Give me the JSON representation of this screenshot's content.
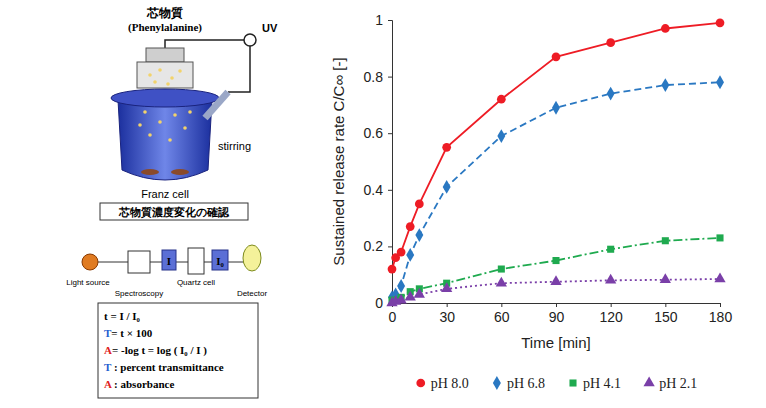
{
  "chart_data": {
    "type": "line",
    "x_label": "Time [min]",
    "y_label": "Sustained release rate C/C∞ [-]",
    "x": [
      0,
      2,
      5,
      10,
      15,
      30,
      60,
      90,
      120,
      150,
      180
    ],
    "xlim": [
      0,
      180
    ],
    "xticks": [
      0,
      30,
      60,
      90,
      120,
      150,
      180
    ],
    "ylim": [
      0,
      1
    ],
    "yticks": [
      0,
      0.2,
      0.4,
      0.6,
      0.8,
      1
    ],
    "grid": false,
    "legend": "bottom",
    "series": [
      {
        "name": "pH 8.0",
        "color": "#ee1c25",
        "marker": "circle",
        "line_style": "solid",
        "values": [
          0.12,
          0.16,
          0.18,
          0.27,
          0.35,
          0.55,
          0.72,
          0.87,
          0.92,
          0.97,
          0.99
        ]
      },
      {
        "name": "pH 6.8",
        "color": "#2a78c2",
        "marker": "diamond",
        "line_style": "dashed",
        "values": [
          0.02,
          0.03,
          0.06,
          0.17,
          0.24,
          0.41,
          0.59,
          0.69,
          0.74,
          0.77,
          0.78
        ]
      },
      {
        "name": "pH 4.1",
        "color": "#1faa4f",
        "marker": "square",
        "line_style": "dashdot",
        "values": [
          0.01,
          0.01,
          0.02,
          0.04,
          0.05,
          0.07,
          0.12,
          0.15,
          0.19,
          0.22,
          0.23
        ]
      },
      {
        "name": "pH 2.1",
        "color": "#7a3fa8",
        "marker": "triangle",
        "line_style": "dotted",
        "values": [
          0.0,
          0.005,
          0.01,
          0.02,
          0.03,
          0.05,
          0.07,
          0.075,
          0.08,
          0.082,
          0.085
        ]
      }
    ]
  },
  "diagram": {
    "core_title": "芯物質",
    "core_name": "(Phenylalanine)",
    "uv": "UV",
    "stirring": "stirring",
    "cell_label": "Franz cell",
    "caption": "芯物質濃度変化の確認",
    "optics": [
      "Light source",
      "Spectroscopy",
      "Quartz cell",
      "Detector"
    ],
    "beam_in": "I",
    "beam_out": "I₀",
    "formulas": [
      "t  = I / I₀",
      "T= t × 100",
      "A= -log t = log ( I₀ / I )",
      "T : percent transmittance",
      "A : absorbance"
    ]
  }
}
